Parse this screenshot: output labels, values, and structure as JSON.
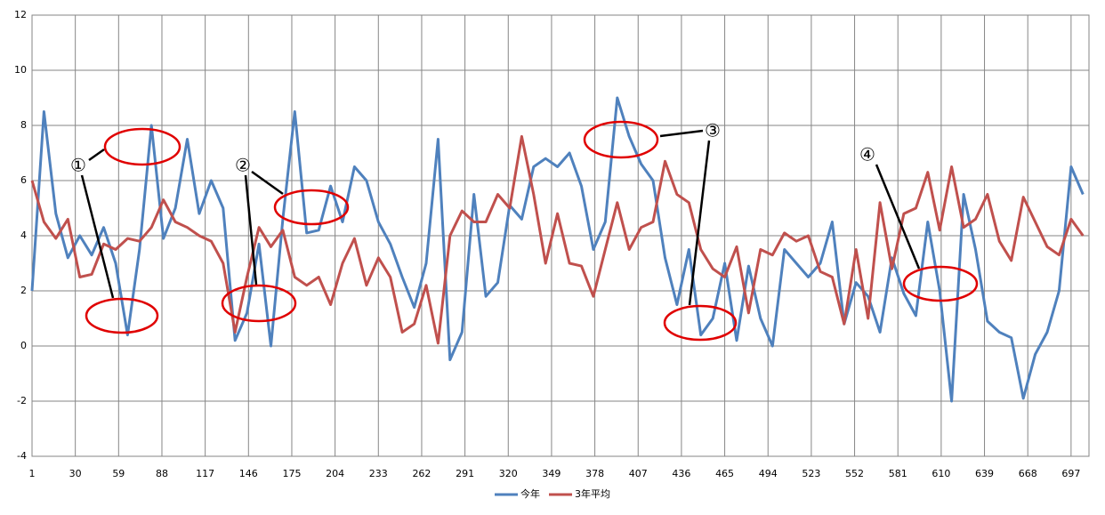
{
  "chart_data": {
    "type": "line",
    "x": [
      1,
      9,
      17,
      25,
      33,
      41,
      49,
      57,
      65,
      73,
      81,
      89,
      97,
      105,
      113,
      121,
      129,
      137,
      145,
      153,
      161,
      169,
      177,
      185,
      193,
      201,
      209,
      217,
      225,
      233,
      241,
      249,
      257,
      265,
      273,
      281,
      289,
      297,
      305,
      313,
      321,
      329,
      337,
      345,
      353,
      361,
      369,
      377,
      385,
      393,
      401,
      409,
      417,
      425,
      433,
      441,
      449,
      457,
      465,
      473,
      481,
      489,
      497,
      505,
      513,
      521,
      529,
      537,
      545,
      553,
      561,
      569,
      577,
      585,
      593,
      601,
      609,
      617,
      625,
      633,
      641,
      649,
      657,
      665,
      673,
      681,
      689,
      697,
      705
    ],
    "xlim": [
      1,
      709
    ],
    "xticks": [
      1,
      30,
      59,
      88,
      117,
      146,
      175,
      204,
      233,
      262,
      291,
      320,
      349,
      378,
      407,
      436,
      465,
      494,
      523,
      552,
      581,
      610,
      639,
      668,
      697
    ],
    "ylim": [
      -4,
      12
    ],
    "yticks": [
      -4,
      -2,
      0,
      2,
      4,
      6,
      8,
      10,
      12
    ],
    "grid": true,
    "legend": "bottom",
    "series": [
      {
        "name": "今年",
        "color": "#4f81bd",
        "values": [
          2.0,
          8.5,
          4.8,
          3.2,
          4.0,
          3.3,
          4.3,
          3.0,
          0.4,
          3.5,
          8.0,
          3.9,
          5.0,
          7.5,
          4.8,
          6.0,
          5.0,
          0.2,
          1.2,
          3.7,
          0.0,
          4.6,
          8.5,
          4.1,
          4.2,
          5.8,
          4.5,
          6.5,
          6.0,
          4.5,
          3.7,
          2.5,
          1.4,
          3.0,
          7.5,
          -0.5,
          0.5,
          5.5,
          1.8,
          2.3,
          5.1,
          4.6,
          6.5,
          6.8,
          6.5,
          7.0,
          5.8,
          3.5,
          4.5,
          9.0,
          7.6,
          6.6,
          6.0,
          3.2,
          1.5,
          3.5,
          0.4,
          1.0,
          3.0,
          0.2,
          2.9,
          1.0,
          0.0,
          3.5,
          3.0,
          2.5,
          3.0,
          4.5,
          0.8,
          2.3,
          1.8,
          0.5,
          3.2,
          1.9,
          1.1,
          4.5,
          2.0,
          -2.0,
          5.5,
          3.5,
          0.9,
          0.5,
          0.3,
          -1.9,
          -0.3,
          0.5,
          2.0,
          6.5,
          5.5
        ]
      },
      {
        "name": "3年平均",
        "color": "#c0504d",
        "values": [
          6.0,
          4.5,
          3.9,
          4.6,
          2.5,
          2.6,
          3.7,
          3.5,
          3.9,
          3.8,
          4.3,
          5.3,
          4.5,
          4.3,
          4.0,
          3.8,
          3.0,
          0.5,
          2.5,
          4.3,
          3.6,
          4.2,
          2.5,
          2.2,
          2.5,
          1.5,
          3.0,
          3.9,
          2.2,
          3.2,
          2.5,
          0.5,
          0.8,
          2.2,
          0.1,
          4.0,
          4.9,
          4.5,
          4.5,
          5.5,
          5.0,
          7.6,
          5.5,
          3.0,
          4.8,
          3.0,
          2.9,
          1.8,
          3.5,
          5.2,
          3.5,
          4.3,
          4.5,
          6.7,
          5.5,
          5.2,
          3.5,
          2.8,
          2.5,
          3.6,
          1.2,
          3.5,
          3.3,
          4.1,
          3.8,
          4.0,
          2.7,
          2.5,
          0.8,
          3.5,
          1.0,
          5.2,
          2.8,
          4.8,
          5.0,
          6.3,
          4.2,
          6.5,
          4.3,
          4.6,
          5.5,
          3.8,
          3.1,
          5.4,
          4.5,
          3.6,
          3.3,
          4.6,
          4.0
        ]
      }
    ],
    "annotations": [
      "①",
      "②",
      "③",
      "④"
    ]
  }
}
